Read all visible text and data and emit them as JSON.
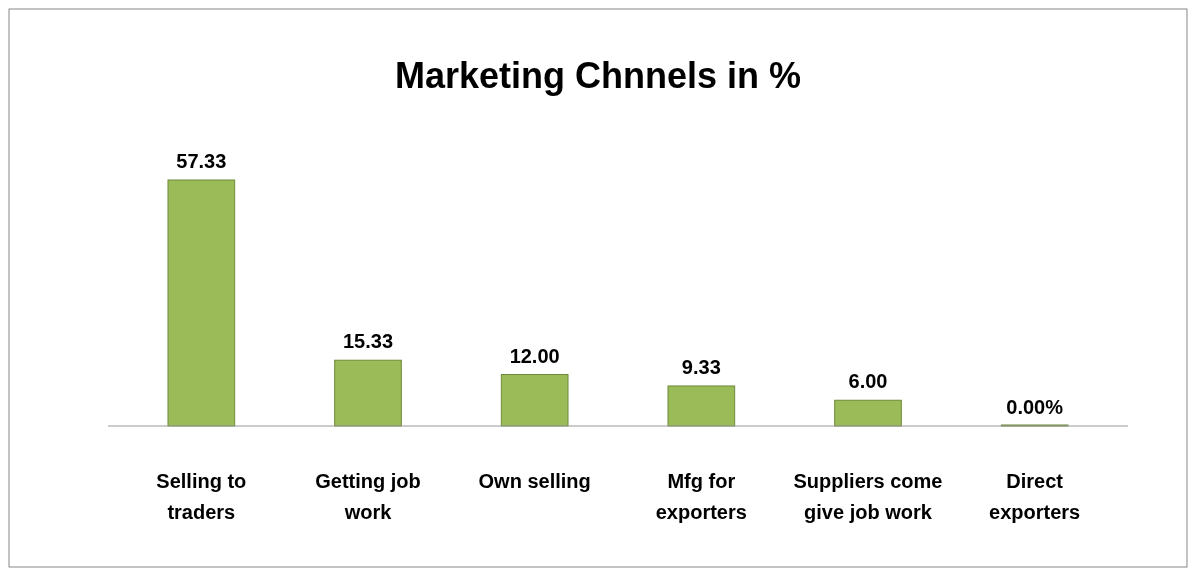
{
  "chart_data": {
    "type": "bar",
    "title": "Marketing Chnnels in %",
    "categories": [
      "Selling to traders",
      "Getting job work",
      "Own selling",
      "Mfg for exporters",
      "Suppliers come give job work",
      "Direct exporters"
    ],
    "values": [
      57.33,
      15.33,
      12.0,
      9.33,
      6.0,
      0.0
    ],
    "value_labels": [
      "57.33",
      "15.33",
      "12.00",
      "9.33",
      "6.00",
      "0.00%"
    ],
    "color": "#9bbb59"
  }
}
